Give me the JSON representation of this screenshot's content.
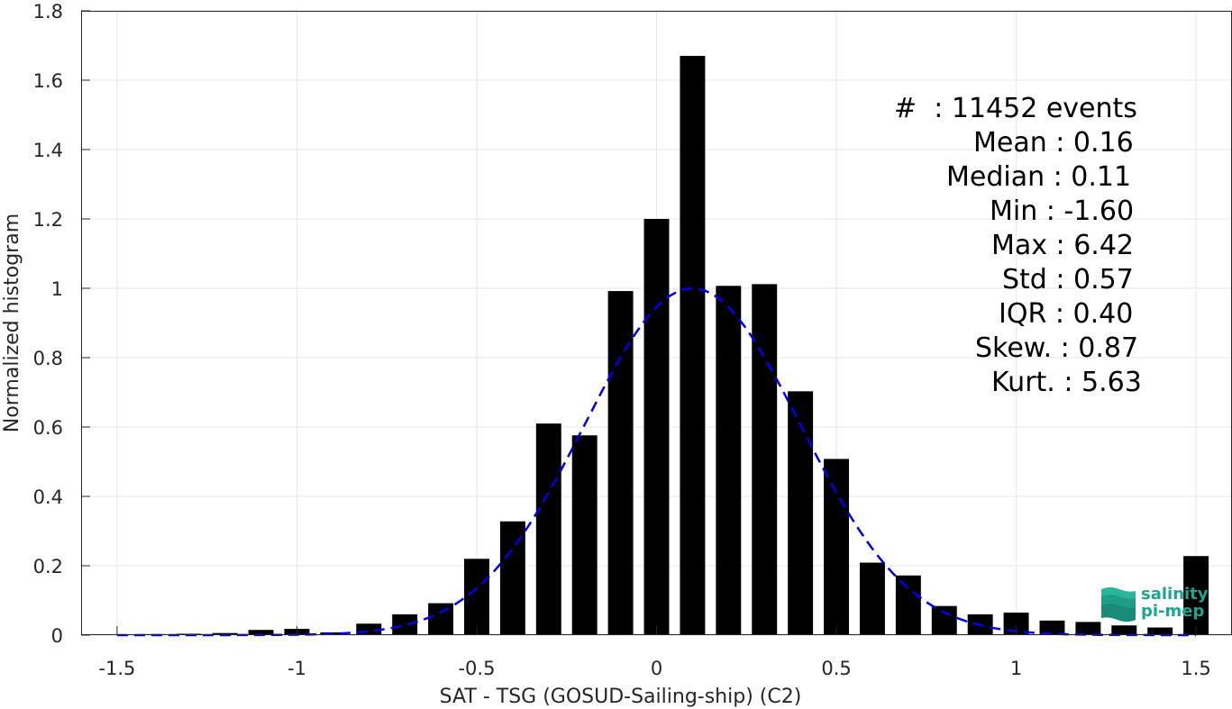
{
  "chart_data": {
    "type": "bar",
    "xlabel": "SAT - TSG (GOSUD-Sailing-ship) (C2)",
    "ylabel": "Normalized histogram",
    "xlim": [
      -1.6,
      1.6
    ],
    "ylim": [
      0,
      1.8
    ],
    "xticks": [
      "-1.5",
      "-1",
      "-0.5",
      "0",
      "0.5",
      "1",
      "1.5"
    ],
    "xtick_values": [
      -1.5,
      -1,
      -0.5,
      0,
      0.5,
      1,
      1.5
    ],
    "yticks": [
      "0",
      "0.2",
      "0.4",
      "0.6",
      "0.8",
      "1",
      "1.2",
      "1.4",
      "1.6",
      "1.8"
    ],
    "ytick_values": [
      0,
      0.2,
      0.4,
      0.6,
      0.8,
      1,
      1.2,
      1.4,
      1.6,
      1.8
    ],
    "grid": true,
    "bar_color": "#000000",
    "bars": {
      "x": [
        -1.5,
        -1.4,
        -1.3,
        -1.2,
        -1.1,
        -1.0,
        -0.9,
        -0.8,
        -0.7,
        -0.6,
        -0.5,
        -0.4,
        -0.3,
        -0.2,
        -0.1,
        0.0,
        0.1,
        0.2,
        0.3,
        0.4,
        0.5,
        0.6,
        0.7,
        0.8,
        0.9,
        1.0,
        1.1,
        1.2,
        1.3,
        1.4,
        1.5
      ],
      "values": [
        0.002,
        0.003,
        0.004,
        0.006,
        0.015,
        0.018,
        0.008,
        0.033,
        0.06,
        0.092,
        0.22,
        0.328,
        0.61,
        0.576,
        0.992,
        1.2,
        1.67,
        1.007,
        1.012,
        0.703,
        0.508,
        0.209,
        0.172,
        0.084,
        0.06,
        0.065,
        0.042,
        0.038,
        0.028,
        0.022,
        0.228
      ],
      "width": 0.07
    },
    "fit": {
      "style": "dashed",
      "color": "#0000ee",
      "mean": 0.1,
      "sigma": 0.3,
      "peak": 1.0
    },
    "annotations": [
      "#  : 11452 events",
      "Mean : 0.16",
      "Median : 0.11",
      "Min : -1.60",
      "Max : 6.42",
      "Std : 0.57",
      "IQR : 0.40",
      "Skew. : 0.87",
      "Kurt. : 5.63"
    ]
  },
  "logo": {
    "line1": "salinity",
    "line2": "pi-mep",
    "color": "#1fa58f"
  }
}
